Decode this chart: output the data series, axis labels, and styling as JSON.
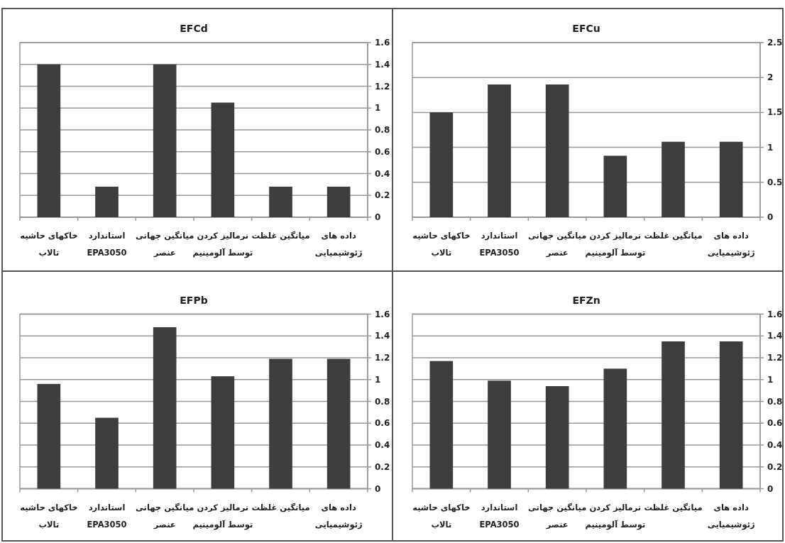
{
  "chart_data": [
    {
      "type": "bar",
      "title": "EFCd",
      "categories": [
        "خاکهای حاشیه\nتالاب",
        "استاندارد\nEPA3050",
        "میانگین جهانی\nعنصر",
        "نرمالیز کردن\nتوسط آلومینیم",
        "میانگین غلظت",
        "داده های\nژئوشیمیایی"
      ],
      "values": [
        1.4,
        0.28,
        1.4,
        1.05,
        0.28,
        0.28
      ],
      "color": "#3d3d3d",
      "ylim": [
        0,
        1.6
      ],
      "yticks": [
        0,
        0.2,
        0.4,
        0.6,
        0.8,
        1,
        1.2,
        1.4,
        1.6
      ],
      "grid": "y"
    },
    {
      "type": "bar",
      "title": "EFCu",
      "categories": [
        "خاکهای حاشیه\nتالاب",
        "استاندارد\nEPA3050",
        "میانگین جهانی\nعنصر",
        "نرمالیز کردن\nتوسط آلومینیم",
        "میانگین غلظت",
        "داده های\nژئوشیمیایی"
      ],
      "values": [
        1.5,
        1.9,
        1.9,
        0.88,
        1.08,
        1.08
      ],
      "color": "#3d3d3d",
      "ylim": [
        0,
        2.5
      ],
      "yticks": [
        0,
        0.5,
        1,
        1.5,
        2,
        2.5
      ],
      "grid": "y"
    },
    {
      "type": "bar",
      "title": "EFPb",
      "categories": [
        "خاکهای حاشیه\nتالاب",
        "استاندارد\nEPA3050",
        "میانگین جهانی\nعنصر",
        "نرمالیز کردن\nتوسط آلومینیم",
        "میانگین غلظت",
        "داده های\nژئوشیمیایی"
      ],
      "values": [
        0.96,
        0.65,
        1.48,
        1.03,
        1.19,
        1.19
      ],
      "color": "#3d3d3d",
      "ylim": [
        0,
        1.6
      ],
      "yticks": [
        0,
        0.2,
        0.4,
        0.6,
        0.8,
        1,
        1.2,
        1.4,
        1.6
      ],
      "grid": "y"
    },
    {
      "type": "bar",
      "title": "EFZn",
      "categories": [
        "خاکهای حاشیه\nتالاب",
        "استاندارد\nEPA3050",
        "میانگین جهانی\nعنصر",
        "نرمالیز کردن\nتوسط آلومینیم",
        "میانگین غلظت",
        "داده های\nژئوشیمیایی"
      ],
      "values": [
        1.17,
        0.99,
        0.94,
        1.1,
        1.35,
        1.35
      ],
      "color": "#3d3d3d",
      "ylim": [
        0,
        1.6
      ],
      "yticks": [
        0,
        0.2,
        0.4,
        0.6,
        0.8,
        1,
        1.2,
        1.4,
        1.6
      ],
      "grid": "y"
    }
  ]
}
